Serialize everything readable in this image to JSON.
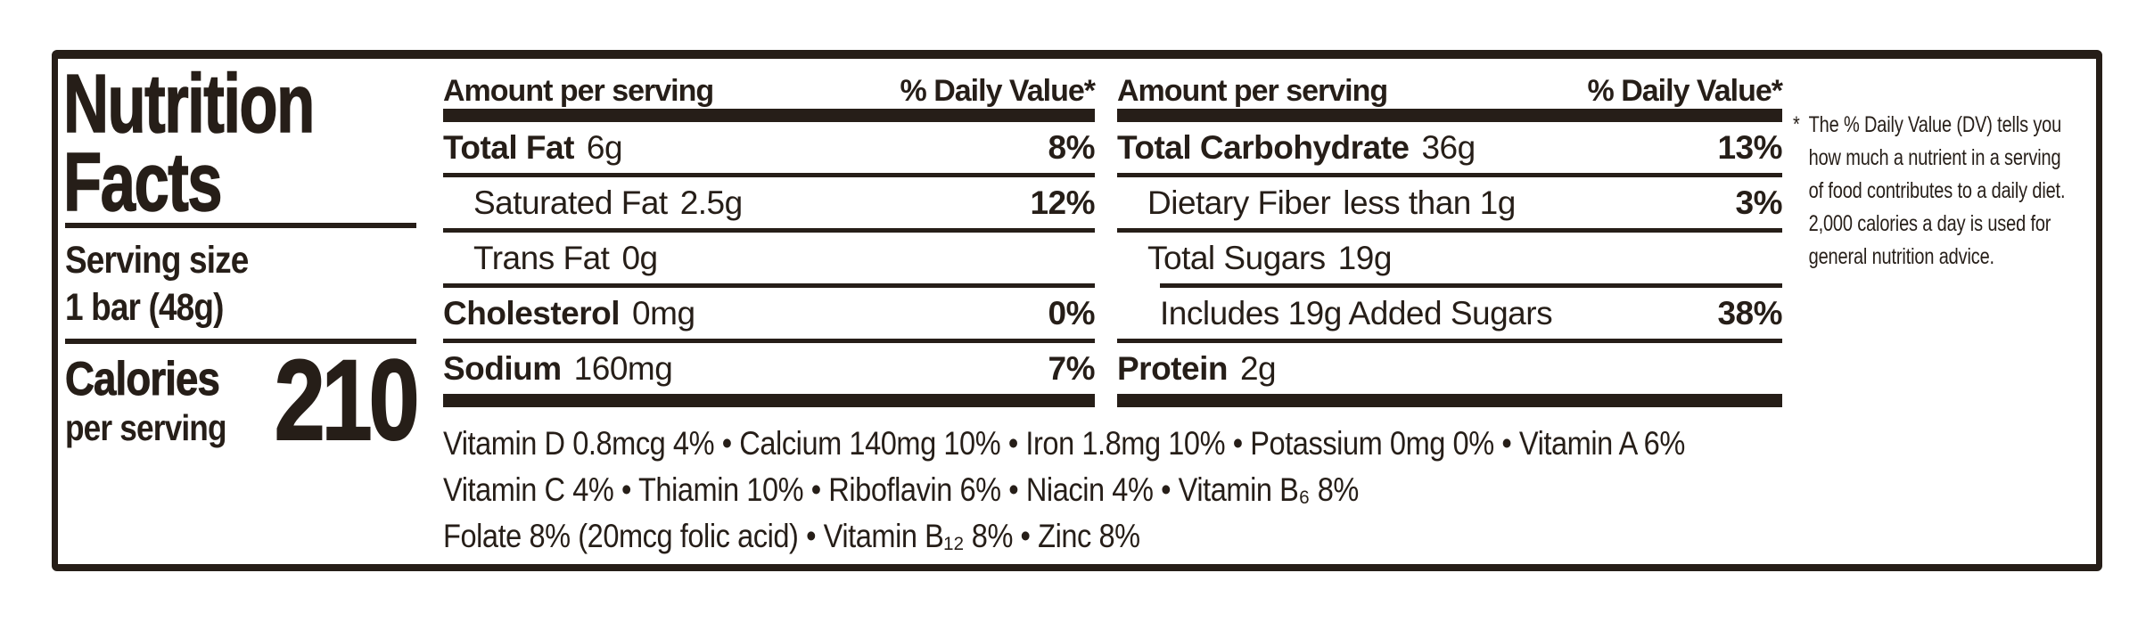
{
  "title": "Nutrition Facts",
  "serving": {
    "label": "Serving size",
    "value": "1 bar (48g)"
  },
  "calories": {
    "label": "Calories",
    "sublabel": "per serving",
    "value": "210"
  },
  "columns": [
    {
      "header_left": "Amount per serving",
      "header_right": "% Daily Value*",
      "rows": [
        {
          "name": "Total Fat",
          "amount": "6g",
          "dv": "8%"
        },
        {
          "name": "Saturated Fat",
          "amount": "2.5g",
          "dv": "12%"
        },
        {
          "name": "Trans Fat",
          "amount": "0g",
          "dv": ""
        },
        {
          "name": "Cholesterol",
          "amount": "0mg",
          "dv": "0%"
        },
        {
          "name": "Sodium",
          "amount": "160mg",
          "dv": "7%"
        }
      ]
    },
    {
      "header_left": "Amount per serving",
      "header_right": "% Daily Value*",
      "rows": [
        {
          "name": "Total Carbohydrate",
          "amount": "36g",
          "dv": "13%"
        },
        {
          "name": "Dietary Fiber",
          "amount": "less than 1g",
          "dv": "3%"
        },
        {
          "name": "Total Sugars",
          "amount": "19g",
          "dv": ""
        },
        {
          "name": "Includes 19g Added Sugars",
          "amount": "",
          "dv": "38%"
        },
        {
          "name": "Protein",
          "amount": "2g",
          "dv": ""
        }
      ]
    }
  ],
  "vitamins": {
    "lines": [
      "Vitamin D  0.8mcg  4% • Calcium  140mg  10% • Iron  1.8mg  10% • Potassium  0mg  0% • Vitamin A  6%",
      "Vitamin C  4% • Thiamin  10% • Riboflavin  6% • Niacin  4% • Vitamin B₆  8%",
      "Folate  8% (20mcg folic acid) • Vitamin B₁₂  8% • Zinc  8%"
    ]
  },
  "footnote": {
    "marker": "*",
    "lines": [
      "The % Daily Value (DV) tells you",
      "how much a nutrient in a serving",
      "of food contributes to a daily diet.",
      "2,000 calories a day is used for",
      "general nutrition advice."
    ]
  },
  "colors": {
    "ink": "#261e18",
    "background": "#ffffff"
  }
}
